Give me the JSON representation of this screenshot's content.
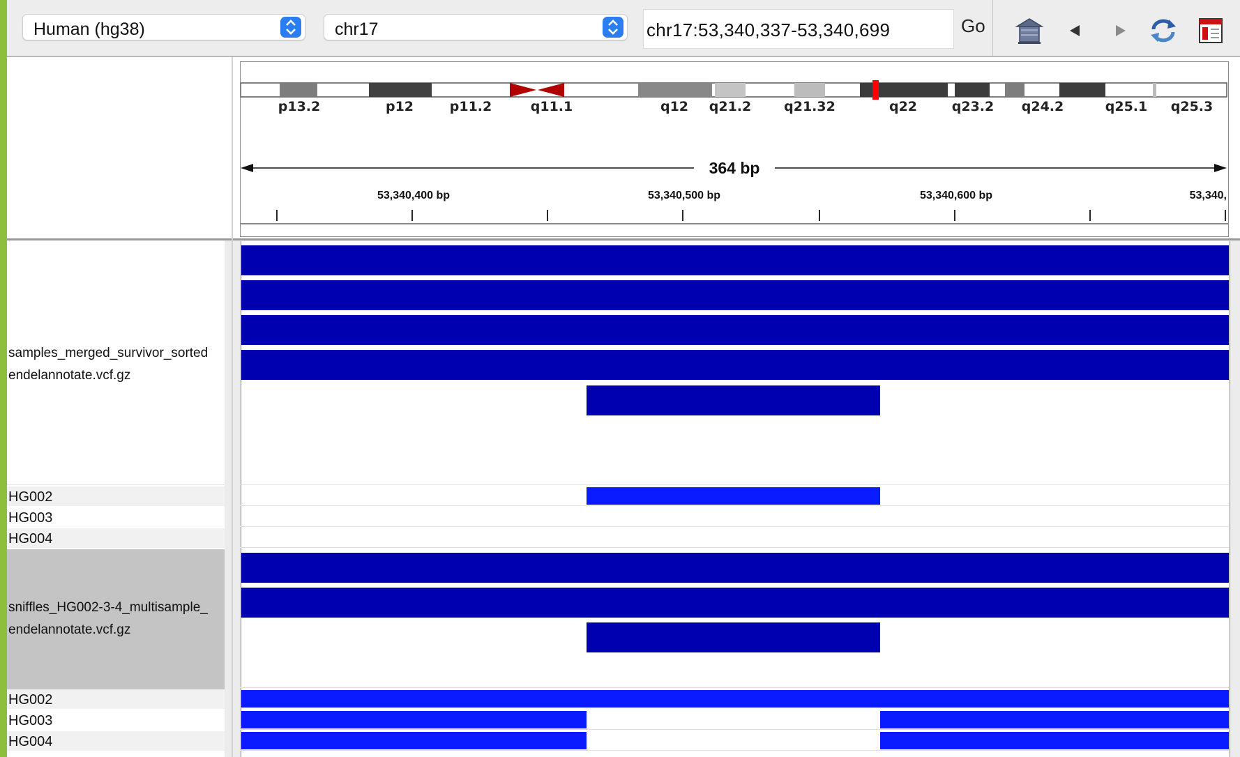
{
  "toolbar": {
    "genome": "Human (hg38)",
    "chromosome": "chr17",
    "locus": "chr17:53,340,337-53,340,699",
    "go_label": "Go",
    "icons": [
      "home-icon",
      "back-arrow-icon",
      "forward-arrow-icon",
      "refresh-icon",
      "region-of-interest-icon"
    ]
  },
  "ideogram": {
    "bands": [
      "p13.2",
      "p12",
      "p11.2",
      "q11.1",
      "q12",
      "q21.2",
      "q21.32",
      "q22",
      "q23.2",
      "q24.2",
      "q25.1",
      "q25.3"
    ],
    "current_region_color": "#ff0000"
  },
  "ruler": {
    "span": "364 bp",
    "labels": [
      "53,340,400 bp",
      "53,340,500 bp",
      "53,340,600 bp",
      "53,340,"
    ]
  },
  "tracks": [
    {
      "name_line1": "samples_merged_survivor_sorted",
      "name_line2": "endelannotate.vcf.gz",
      "samples": [
        "HG002",
        "HG003",
        "HG004"
      ]
    },
    {
      "name_line1": "sniffles_HG002-3-4_multisample_",
      "name_line2": "endelannotate.vcf.gz",
      "samples": [
        "HG002",
        "HG003",
        "HG004"
      ]
    }
  ],
  "colors": {
    "variant": "#0000b0",
    "genotype_het": "#0a1cff",
    "centromere": "#b00000",
    "app_accent": "#8fbd3c"
  }
}
